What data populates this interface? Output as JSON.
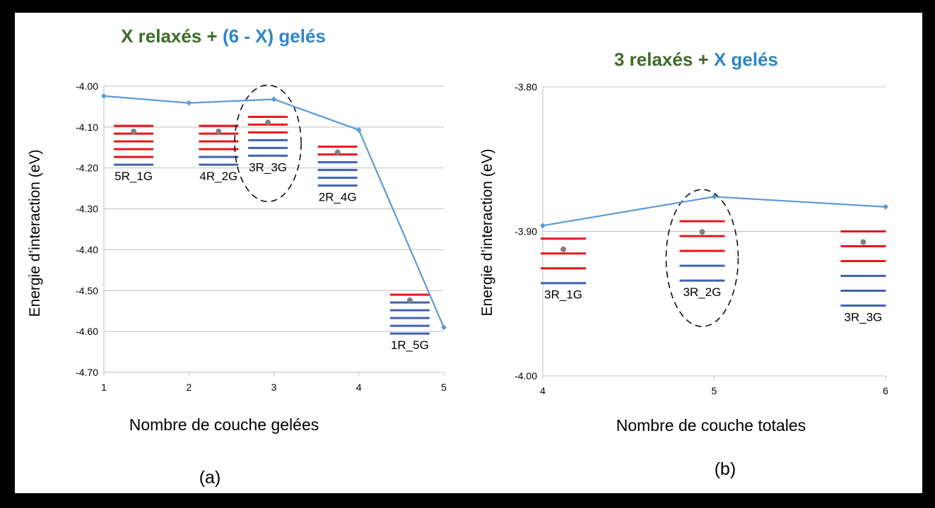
{
  "colors": {
    "frame": "#000000",
    "panel_bg": "#ffffff",
    "line": "#5b9bd5",
    "title_green": "#3e6b2a",
    "title_blue": "#2e86c8",
    "relaxed_layer": "#e8161b",
    "frozen_layer": "#3f63b0",
    "dot": "#808080",
    "grid": "#bfbfbf"
  },
  "chart_data": [
    {
      "type": "line",
      "panel_label": "(a)",
      "title_parts": [
        "X relaxés",
        " + ",
        "(6 - X) gelés"
      ],
      "xlabel": "Nombre de couche gelées",
      "ylabel": "Energie d’interaction  (eV)",
      "xlim": [
        1,
        5
      ],
      "ylim": [
        -4.7,
        -4.0
      ],
      "x_ticks": [
        "1",
        "2",
        "3",
        "4",
        "5"
      ],
      "y_ticks": [
        "-4.00",
        "-4.10",
        "-4.20",
        "-4.30",
        "-4.40",
        "-4.50",
        "-4.60",
        "-4.70"
      ],
      "grid": "horizontal",
      "x": [
        1,
        2,
        3,
        4,
        5
      ],
      "y": [
        -4.024,
        -4.041,
        -4.032,
        -4.107,
        -4.59
      ],
      "stacks": [
        {
          "label": "5R_1G",
          "relaxed": 5,
          "frozen": 1,
          "x": 1.35,
          "top": -4.097,
          "highlighted": false
        },
        {
          "label": "4R_2G",
          "relaxed": 4,
          "frozen": 2,
          "x": 2.35,
          "top": -4.097,
          "highlighted": false
        },
        {
          "label": "3R_3G",
          "relaxed": 3,
          "frozen": 3,
          "x": 2.93,
          "top": -4.075,
          "highlighted": true
        },
        {
          "label": "2R_4G",
          "relaxed": 2,
          "frozen": 4,
          "x": 3.75,
          "top": -4.148,
          "highlighted": false
        },
        {
          "label": "1R_5G",
          "relaxed": 1,
          "frozen": 5,
          "x": 4.6,
          "top": -4.51,
          "highlighted": false
        }
      ]
    },
    {
      "type": "line",
      "panel_label": "(b)",
      "title_parts": [
        "3 relaxés",
        " + ",
        "X gelés"
      ],
      "xlabel": "Nombre de couche totales",
      "ylabel": "Energie d’interaction  (eV)",
      "xlim": [
        4,
        6
      ],
      "ylim": [
        -4.0,
        -3.8
      ],
      "x_ticks": [
        "4",
        "5",
        "6"
      ],
      "y_ticks": [
        "-3.80",
        "-3.90",
        "-4.00"
      ],
      "grid": "horizontal",
      "x": [
        4,
        5,
        6
      ],
      "y": [
        -3.896,
        -3.876,
        -3.883
      ],
      "stacks": [
        {
          "label": "3R_1G",
          "relaxed": 3,
          "frozen": 1,
          "x": 4.12,
          "top": -3.905,
          "highlighted": false
        },
        {
          "label": "3R_2G",
          "relaxed": 3,
          "frozen": 2,
          "x": 4.93,
          "top": -3.893,
          "highlighted": true
        },
        {
          "label": "3R_3G",
          "relaxed": 3,
          "frozen": 3,
          "x": 5.87,
          "top": -3.9,
          "highlighted": false
        }
      ]
    }
  ]
}
